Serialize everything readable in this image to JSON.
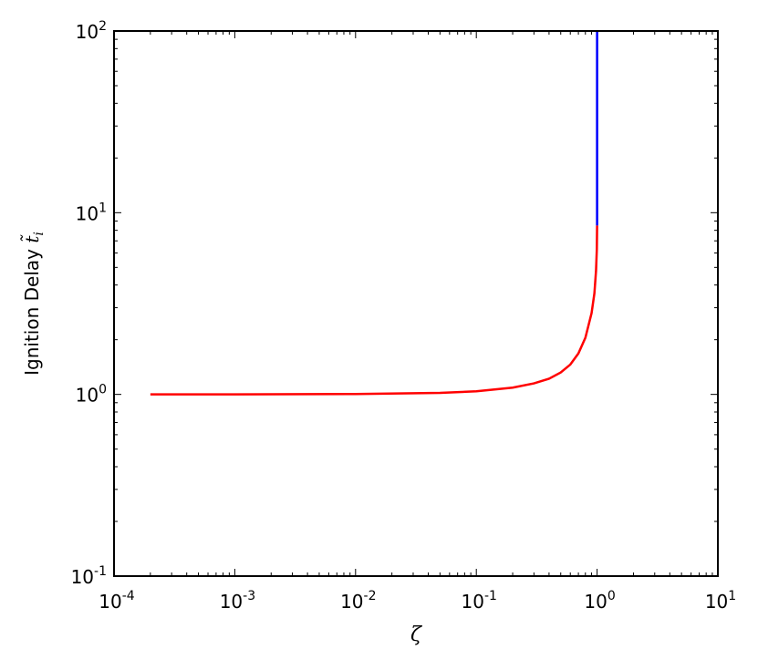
{
  "chart_data": {
    "type": "line",
    "xlabel": "ζ",
    "ylabel": "Ignition Delay ",
    "ylabel_symbol": "t̃",
    "ylabel_sub": "i",
    "xscale": "log",
    "yscale": "log",
    "xlim": [
      0.0001,
      10
    ],
    "ylim": [
      0.1,
      100
    ],
    "xticks": [
      {
        "value": 0.0001,
        "label": "10",
        "sup": "-4"
      },
      {
        "value": 0.001,
        "label": "10",
        "sup": "-3"
      },
      {
        "value": 0.01,
        "label": "10",
        "sup": "-2"
      },
      {
        "value": 0.1,
        "label": "10",
        "sup": "-1"
      },
      {
        "value": 1,
        "label": "10",
        "sup": "0"
      },
      {
        "value": 10,
        "label": "10",
        "sup": "1"
      }
    ],
    "yticks": [
      {
        "value": 0.1,
        "label": "10",
        "sup": "-1"
      },
      {
        "value": 1,
        "label": "10",
        "sup": "0"
      },
      {
        "value": 10,
        "label": "10",
        "sup": "1"
      },
      {
        "value": 100,
        "label": "10",
        "sup": "2"
      }
    ],
    "minor_ticks": true,
    "grid": false,
    "series": [
      {
        "color": "#ff0000",
        "x": [
          0.0002,
          0.001,
          0.01,
          0.05,
          0.1,
          0.2,
          0.3,
          0.4,
          0.5,
          0.6,
          0.7,
          0.8,
          0.9,
          0.95,
          0.98,
          0.995,
          1.0
        ],
        "values": [
          1.0,
          1.0,
          1.005,
          1.02,
          1.04,
          1.09,
          1.15,
          1.22,
          1.32,
          1.46,
          1.68,
          2.05,
          2.8,
          3.6,
          4.8,
          6.3,
          8.5
        ]
      },
      {
        "color": "#0000ff",
        "x": [
          1.0,
          1.0
        ],
        "values": [
          8.5,
          100
        ]
      }
    ]
  }
}
